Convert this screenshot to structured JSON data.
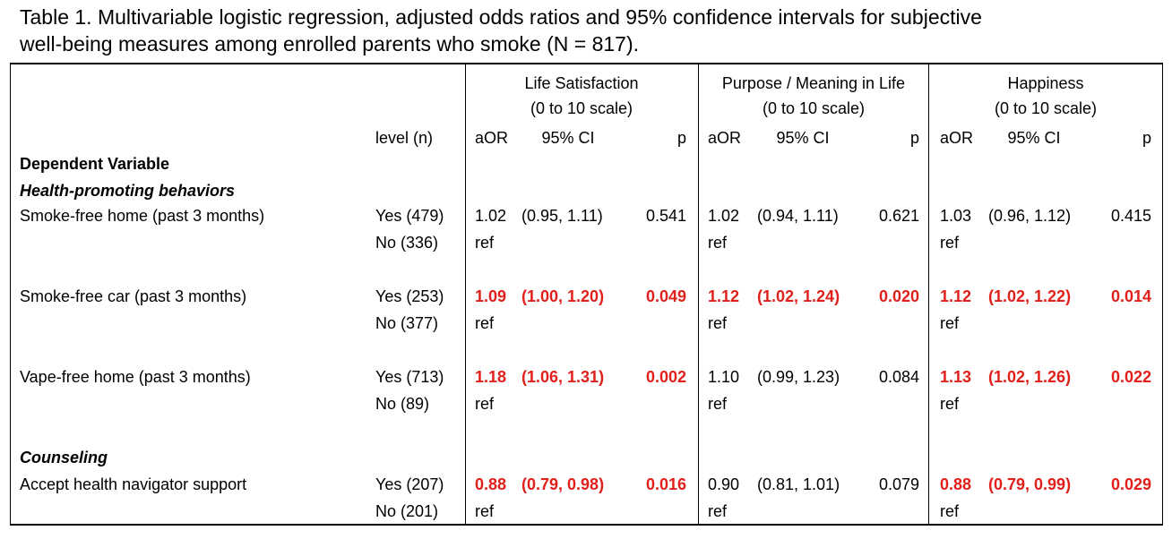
{
  "caption": {
    "line1": "Table 1. Multivariable logistic regression, adjusted odds ratios and 95% confidence intervals for subjective",
    "line2": "well-being measures among enrolled parents who smoke (N = 817)."
  },
  "groups": [
    {
      "title": "Life Satisfaction",
      "scale": "(0 to 10 scale)"
    },
    {
      "title": "Purpose / Meaning in Life",
      "scale": "(0 to 10 scale)"
    },
    {
      "title": "Happiness",
      "scale": "(0 to 10 scale)"
    }
  ],
  "headers": {
    "level": "level (n)",
    "aor": "aOR",
    "ci": "95% CI",
    "p": "p"
  },
  "sections": {
    "dependent": "Dependent Variable",
    "health": "Health-promoting behaviors",
    "counseling": "Counseling"
  },
  "colors": {
    "significant": "#e0201b",
    "text": "#000000"
  },
  "rows": [
    {
      "label": "Smoke-free home (past 3 months)",
      "yes": "Yes (479)",
      "no": "No (336)",
      "ref": "ref",
      "results": [
        {
          "aor": "1.02",
          "ci": "(0.95, 1.11)",
          "p": "0.541",
          "sig": false
        },
        {
          "aor": "1.02",
          "ci": "(0.94, 1.11)",
          "p": "0.621",
          "sig": false
        },
        {
          "aor": "1.03",
          "ci": "(0.96, 1.12)",
          "p": "0.415",
          "sig": false
        }
      ]
    },
    {
      "label": "Smoke-free car (past 3 months)",
      "yes": "Yes (253)",
      "no": "No (377)",
      "ref": "ref",
      "results": [
        {
          "aor": "1.09",
          "ci": "(1.00, 1.20)",
          "p": "0.049",
          "sig": true
        },
        {
          "aor": "1.12",
          "ci": "(1.02, 1.24)",
          "p": "0.020",
          "sig": true
        },
        {
          "aor": "1.12",
          "ci": "(1.02, 1.22)",
          "p": "0.014",
          "sig": true
        }
      ]
    },
    {
      "label": "Vape-free home (past 3 months)",
      "yes": "Yes (713)",
      "no": "No (89)",
      "ref": "ref",
      "results": [
        {
          "aor": "1.18",
          "ci": "(1.06, 1.31)",
          "p": "0.002",
          "sig": true
        },
        {
          "aor": "1.10",
          "ci": "(0.99, 1.23)",
          "p": "0.084",
          "sig": false
        },
        {
          "aor": "1.13",
          "ci": "(1.02, 1.26)",
          "p": "0.022",
          "sig": true
        }
      ]
    },
    {
      "label": "Accept health navigator support",
      "yes": "Yes (207)",
      "no": "No (201)",
      "ref": "ref",
      "results": [
        {
          "aor": "0.88",
          "ci": "(0.79, 0.98)",
          "p": "0.016",
          "sig": true
        },
        {
          "aor": "0.90",
          "ci": "(0.81, 1.01)",
          "p": "0.079",
          "sig": false
        },
        {
          "aor": "0.88",
          "ci": "(0.79, 0.99)",
          "p": "0.029",
          "sig": true
        }
      ]
    }
  ]
}
